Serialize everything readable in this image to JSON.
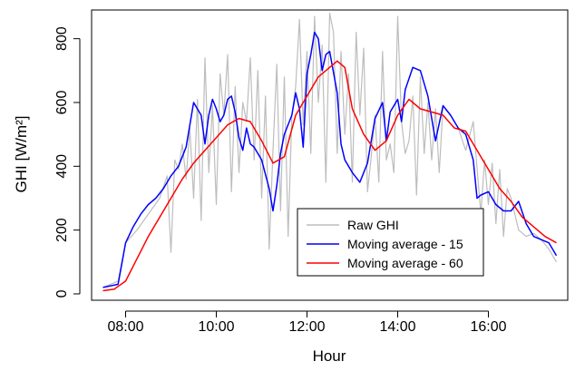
{
  "chart_data": {
    "type": "line",
    "title": "",
    "xlabel": "Hour",
    "ylabel": "GHI [W/m²]",
    "xlim": [
      "07:15",
      "17:45"
    ],
    "ylim": [
      -20,
      890
    ],
    "x_ticks": [
      "08:00",
      "10:00",
      "12:00",
      "14:00",
      "16:00"
    ],
    "y_ticks": [
      0,
      200,
      400,
      600,
      800
    ],
    "legend": {
      "position": "bottom-right",
      "entries": [
        {
          "label": "Raw GHI",
          "color": "#bdbdbd"
        },
        {
          "label": "Moving average - 15",
          "color": "#0000ff"
        },
        {
          "label": "Moving average - 60",
          "color": "#ff0000"
        }
      ]
    },
    "series": [
      {
        "name": "Raw GHI",
        "color": "#bdbdbd",
        "x": [
          "07:30",
          "07:50",
          "08:00",
          "08:15",
          "08:30",
          "08:45",
          "08:55",
          "09:00",
          "09:05",
          "09:10",
          "09:15",
          "09:20",
          "09:25",
          "09:30",
          "09:35",
          "09:40",
          "09:45",
          "09:50",
          "09:55",
          "10:00",
          "10:05",
          "10:10",
          "10:15",
          "10:20",
          "10:25",
          "10:30",
          "10:35",
          "10:40",
          "10:45",
          "10:50",
          "10:55",
          "11:00",
          "11:05",
          "11:10",
          "11:15",
          "11:20",
          "11:25",
          "11:30",
          "11:35",
          "11:40",
          "11:45",
          "11:50",
          "11:55",
          "12:00",
          "12:05",
          "12:10",
          "12:15",
          "12:20",
          "12:25",
          "12:30",
          "12:35",
          "12:40",
          "12:45",
          "12:50",
          "12:55",
          "13:00",
          "13:05",
          "13:10",
          "13:15",
          "13:20",
          "13:25",
          "13:30",
          "13:35",
          "13:40",
          "13:45",
          "13:50",
          "13:55",
          "14:00",
          "14:05",
          "14:10",
          "14:15",
          "14:20",
          "14:25",
          "14:30",
          "14:35",
          "14:40",
          "14:45",
          "14:50",
          "14:55",
          "15:00",
          "15:10",
          "15:20",
          "15:30",
          "15:40",
          "15:50",
          "15:55",
          "16:00",
          "16:05",
          "16:10",
          "16:15",
          "16:20",
          "16:25",
          "16:30",
          "16:40",
          "16:50",
          "17:00",
          "17:10",
          "17:20",
          "17:30"
        ],
        "y": [
          20,
          40,
          160,
          200,
          250,
          300,
          370,
          130,
          420,
          390,
          470,
          360,
          520,
          300,
          610,
          230,
          740,
          380,
          590,
          280,
          690,
          560,
          750,
          320,
          650,
          380,
          600,
          540,
          740,
          420,
          700,
          300,
          620,
          140,
          450,
          720,
          260,
          680,
          180,
          560,
          650,
          860,
          530,
          760,
          440,
          870,
          600,
          780,
          350,
          880,
          820,
          440,
          760,
          500,
          690,
          350,
          820,
          560,
          770,
          320,
          430,
          560,
          350,
          760,
          420,
          470,
          380,
          870,
          540,
          440,
          480,
          620,
          310,
          680,
          440,
          600,
          420,
          580,
          380,
          590,
          560,
          520,
          450,
          540,
          250,
          420,
          280,
          410,
          220,
          390,
          180,
          330,
          300,
          200,
          180,
          190,
          170,
          140,
          100
        ]
      },
      {
        "name": "Moving average - 15",
        "color": "#0000ff",
        "x": [
          "07:30",
          "07:50",
          "08:00",
          "08:10",
          "08:20",
          "08:30",
          "08:40",
          "08:50",
          "09:00",
          "09:10",
          "09:20",
          "09:30",
          "09:40",
          "09:45",
          "09:50",
          "09:55",
          "10:00",
          "10:05",
          "10:10",
          "10:15",
          "10:20",
          "10:25",
          "10:30",
          "10:35",
          "10:40",
          "10:45",
          "10:50",
          "11:00",
          "11:10",
          "11:15",
          "11:20",
          "11:25",
          "11:30",
          "11:40",
          "11:45",
          "11:50",
          "11:55",
          "12:00",
          "12:05",
          "12:10",
          "12:15",
          "12:20",
          "12:25",
          "12:30",
          "12:40",
          "12:45",
          "12:50",
          "13:00",
          "13:10",
          "13:20",
          "13:30",
          "13:40",
          "13:45",
          "13:50",
          "14:00",
          "14:05",
          "14:10",
          "14:20",
          "14:30",
          "14:40",
          "14:45",
          "14:50",
          "15:00",
          "15:10",
          "15:20",
          "15:30",
          "15:40",
          "15:45",
          "15:50",
          "16:00",
          "16:10",
          "16:20",
          "16:30",
          "16:40",
          "16:50",
          "17:00",
          "17:10",
          "17:20",
          "17:30"
        ],
        "y": [
          20,
          30,
          160,
          210,
          250,
          280,
          300,
          330,
          370,
          400,
          460,
          600,
          560,
          470,
          560,
          610,
          580,
          540,
          560,
          610,
          620,
          570,
          490,
          450,
          520,
          470,
          460,
          420,
          330,
          260,
          340,
          440,
          500,
          560,
          630,
          580,
          460,
          690,
          750,
          820,
          800,
          700,
          750,
          760,
          630,
          470,
          420,
          380,
          350,
          410,
          550,
          600,
          480,
          570,
          610,
          540,
          640,
          710,
          700,
          620,
          550,
          480,
          590,
          560,
          520,
          500,
          420,
          300,
          310,
          320,
          280,
          260,
          260,
          290,
          220,
          180,
          170,
          160,
          120
        ]
      },
      {
        "name": "Moving average - 60",
        "color": "#ff0000",
        "x": [
          "07:30",
          "07:45",
          "08:00",
          "08:15",
          "08:30",
          "08:45",
          "09:00",
          "09:15",
          "09:30",
          "09:45",
          "10:00",
          "10:15",
          "10:30",
          "10:45",
          "11:00",
          "11:15",
          "11:30",
          "11:45",
          "12:00",
          "12:15",
          "12:30",
          "12:40",
          "12:50",
          "13:00",
          "13:15",
          "13:30",
          "13:45",
          "14:00",
          "14:15",
          "14:30",
          "14:45",
          "15:00",
          "15:15",
          "15:30",
          "15:45",
          "16:00",
          "16:15",
          "16:30",
          "16:45",
          "17:00",
          "17:15",
          "17:30"
        ],
        "y": [
          10,
          15,
          40,
          110,
          180,
          240,
          300,
          360,
          410,
          450,
          490,
          530,
          550,
          540,
          480,
          410,
          430,
          560,
          620,
          680,
          710,
          730,
          710,
          580,
          500,
          450,
          480,
          560,
          610,
          580,
          570,
          560,
          520,
          510,
          450,
          390,
          330,
          290,
          240,
          210,
          180,
          160
        ]
      }
    ]
  }
}
